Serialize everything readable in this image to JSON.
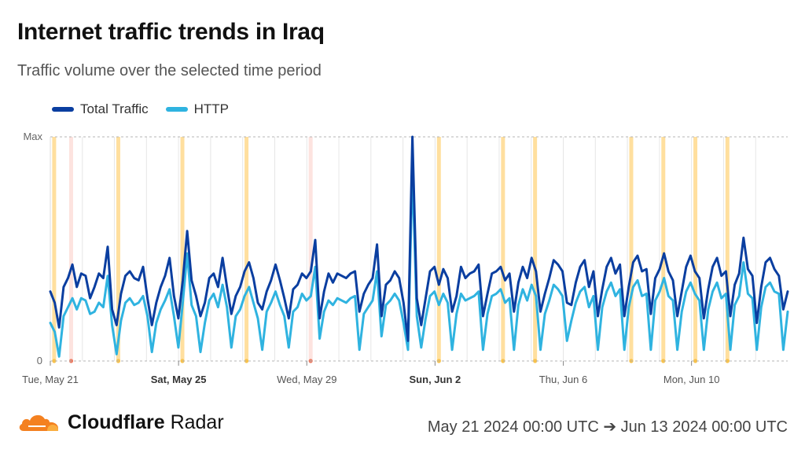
{
  "title": "Internet traffic trends in Iraq",
  "subtitle": "Traffic volume over the selected time period",
  "legend": [
    {
      "label": "Total Traffic",
      "color": "#0a3ea0"
    },
    {
      "label": "HTTP",
      "color": "#2fb3e0"
    }
  ],
  "brand": {
    "name_bold": "Cloudflare",
    "name_rest": " Radar"
  },
  "date_range": "May 21 2024 00:00 UTC ➔ Jun 13 2024 00:00 UTC",
  "chart_data": {
    "type": "line",
    "title": "Internet traffic trends in Iraq",
    "x_unit": "days since May 21 2024 00:00 UTC",
    "xlim": [
      0,
      23
    ],
    "y_axis_labels": {
      "top": "Max",
      "bottom": "0"
    },
    "ylim": [
      0,
      1
    ],
    "x_ticks": [
      {
        "x": 0,
        "label": "Tue, May 21",
        "bold": false
      },
      {
        "x": 4,
        "label": "Sat, May 25",
        "bold": true
      },
      {
        "x": 8,
        "label": "Wed, May 29",
        "bold": false
      },
      {
        "x": 12,
        "label": "Sun, Jun 2",
        "bold": true
      },
      {
        "x": 16,
        "label": "Thu, Jun 6",
        "bold": false
      },
      {
        "x": 20,
        "label": "Mon, Jun 10",
        "bold": false
      }
    ],
    "annotations": [
      {
        "x": 0.12,
        "kind": "orange"
      },
      {
        "x": 0.65,
        "kind": "red"
      },
      {
        "x": 2.12,
        "kind": "orange"
      },
      {
        "x": 4.12,
        "kind": "orange"
      },
      {
        "x": 6.12,
        "kind": "orange"
      },
      {
        "x": 8.12,
        "kind": "red"
      },
      {
        "x": 12.12,
        "kind": "orange"
      },
      {
        "x": 14.12,
        "kind": "orange"
      },
      {
        "x": 15.12,
        "kind": "orange"
      },
      {
        "x": 18.12,
        "kind": "orange"
      },
      {
        "x": 19.12,
        "kind": "orange"
      },
      {
        "x": 20.12,
        "kind": "orange"
      },
      {
        "x": 21.12,
        "kind": "orange"
      }
    ],
    "series": [
      {
        "name": "Total Traffic",
        "color": "#0a3ea0",
        "values": [
          0.31,
          0.26,
          0.15,
          0.33,
          0.37,
          0.43,
          0.33,
          0.39,
          0.38,
          0.28,
          0.33,
          0.39,
          0.37,
          0.51,
          0.23,
          0.16,
          0.3,
          0.38,
          0.4,
          0.37,
          0.36,
          0.42,
          0.28,
          0.16,
          0.26,
          0.33,
          0.38,
          0.46,
          0.29,
          0.19,
          0.36,
          0.58,
          0.36,
          0.29,
          0.2,
          0.26,
          0.37,
          0.39,
          0.33,
          0.46,
          0.33,
          0.21,
          0.29,
          0.33,
          0.4,
          0.44,
          0.37,
          0.26,
          0.23,
          0.31,
          0.36,
          0.43,
          0.36,
          0.28,
          0.19,
          0.32,
          0.34,
          0.39,
          0.37,
          0.4,
          0.54,
          0.19,
          0.31,
          0.39,
          0.35,
          0.39,
          0.38,
          0.37,
          0.39,
          0.4,
          0.22,
          0.3,
          0.34,
          0.37,
          0.52,
          0.2,
          0.34,
          0.36,
          0.4,
          0.37,
          0.26,
          0.09,
          1.0,
          0.28,
          0.16,
          0.28,
          0.4,
          0.42,
          0.34,
          0.41,
          0.37,
          0.22,
          0.29,
          0.42,
          0.37,
          0.39,
          0.4,
          0.43,
          0.2,
          0.3,
          0.39,
          0.4,
          0.42,
          0.36,
          0.39,
          0.22,
          0.35,
          0.42,
          0.37,
          0.46,
          0.4,
          0.22,
          0.3,
          0.37,
          0.45,
          0.43,
          0.4,
          0.26,
          0.25,
          0.35,
          0.42,
          0.45,
          0.33,
          0.4,
          0.2,
          0.32,
          0.42,
          0.46,
          0.39,
          0.43,
          0.2,
          0.33,
          0.44,
          0.47,
          0.4,
          0.41,
          0.21,
          0.37,
          0.41,
          0.48,
          0.4,
          0.36,
          0.2,
          0.31,
          0.42,
          0.47,
          0.4,
          0.37,
          0.19,
          0.32,
          0.42,
          0.46,
          0.38,
          0.4,
          0.2,
          0.34,
          0.39,
          0.55,
          0.41,
          0.38,
          0.17,
          0.33,
          0.44,
          0.46,
          0.41,
          0.38,
          0.23,
          0.31
        ]
      },
      {
        "name": "HTTP",
        "color": "#2fb3e0",
        "values": [
          0.17,
          0.13,
          0.02,
          0.2,
          0.24,
          0.28,
          0.23,
          0.28,
          0.27,
          0.21,
          0.22,
          0.26,
          0.24,
          0.38,
          0.16,
          0.03,
          0.18,
          0.26,
          0.28,
          0.25,
          0.26,
          0.29,
          0.2,
          0.04,
          0.17,
          0.23,
          0.27,
          0.32,
          0.2,
          0.06,
          0.26,
          0.48,
          0.25,
          0.2,
          0.04,
          0.17,
          0.27,
          0.3,
          0.24,
          0.34,
          0.24,
          0.06,
          0.2,
          0.23,
          0.29,
          0.33,
          0.26,
          0.19,
          0.05,
          0.22,
          0.26,
          0.31,
          0.25,
          0.2,
          0.06,
          0.22,
          0.24,
          0.3,
          0.27,
          0.29,
          0.42,
          0.1,
          0.22,
          0.27,
          0.25,
          0.28,
          0.27,
          0.26,
          0.28,
          0.29,
          0.05,
          0.21,
          0.24,
          0.27,
          0.4,
          0.11,
          0.25,
          0.27,
          0.3,
          0.27,
          0.17,
          0.05,
          0.85,
          0.2,
          0.06,
          0.19,
          0.29,
          0.31,
          0.25,
          0.3,
          0.26,
          0.05,
          0.21,
          0.3,
          0.27,
          0.28,
          0.29,
          0.31,
          0.05,
          0.21,
          0.29,
          0.3,
          0.32,
          0.26,
          0.28,
          0.05,
          0.25,
          0.32,
          0.27,
          0.34,
          0.29,
          0.05,
          0.21,
          0.27,
          0.34,
          0.32,
          0.29,
          0.09,
          0.18,
          0.26,
          0.31,
          0.33,
          0.24,
          0.29,
          0.05,
          0.24,
          0.31,
          0.35,
          0.29,
          0.32,
          0.05,
          0.24,
          0.33,
          0.36,
          0.29,
          0.3,
          0.05,
          0.27,
          0.31,
          0.37,
          0.29,
          0.27,
          0.05,
          0.22,
          0.31,
          0.35,
          0.3,
          0.27,
          0.05,
          0.23,
          0.31,
          0.35,
          0.28,
          0.3,
          0.05,
          0.25,
          0.29,
          0.44,
          0.3,
          0.28,
          0.05,
          0.24,
          0.33,
          0.35,
          0.31,
          0.3,
          0.05,
          0.22
        ]
      }
    ]
  }
}
